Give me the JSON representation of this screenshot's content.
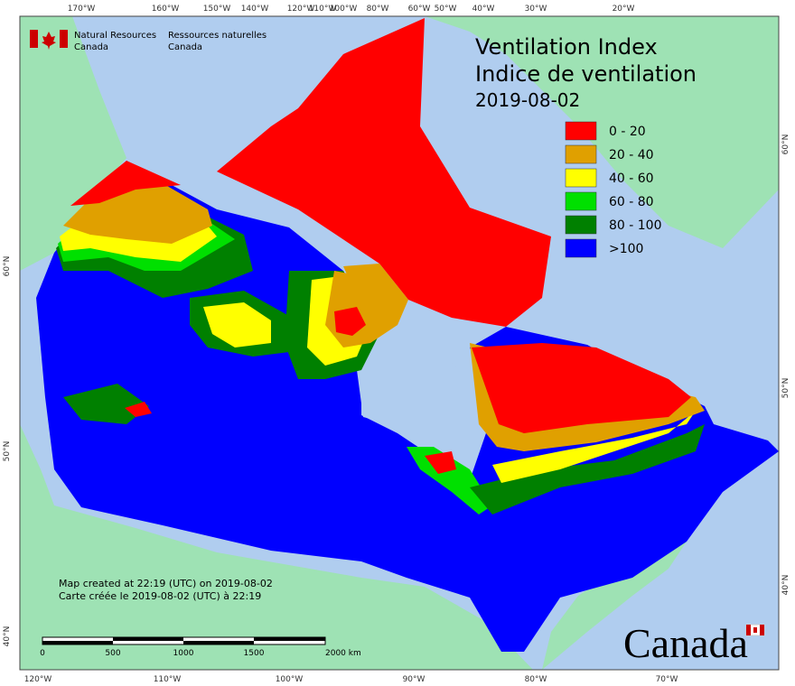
{
  "header": {
    "org_en": [
      "Natural Resources",
      "Canada"
    ],
    "org_fr": [
      "Ressources naturelles",
      "Canada"
    ]
  },
  "title": [
    "Ventilation Index",
    "Indice de ventilation",
    "2019-08-02"
  ],
  "legend": [
    {
      "label": "0 - 20",
      "color": "#ff0000"
    },
    {
      "label": "20 - 40",
      "color": "#e0a000"
    },
    {
      "label": "40 - 60",
      "color": "#ffff00"
    },
    {
      "label": "60 - 80",
      "color": "#00e000"
    },
    {
      "label": "80 - 100",
      "color": "#008000"
    },
    {
      "label": ">100",
      "color": "#0000ff"
    }
  ],
  "top_longitudes": [
    "170°W",
    "160°W",
    "150°W",
    "140°W",
    "120°W",
    "110°W",
    "100°W",
    "80°W",
    "60°W",
    "50°W",
    "40°W",
    "30°W",
    "20°W"
  ],
  "bottom_longitudes": [
    "120°W",
    "110°W",
    "100°W",
    "90°W",
    "80°W",
    "70°W"
  ],
  "left_latitudes": [
    "60°N",
    "50°N",
    "40°N"
  ],
  "right_latitudes": [
    "60°N",
    "50°N",
    "40°N"
  ],
  "notes": [
    "Map created at 22:19 (UTC) on 2019-08-02",
    "Carte créée le 2019-08-02 (UTC) à 22:19"
  ],
  "scale_labels": [
    "0",
    "500",
    "1000",
    "1500",
    "2000 km"
  ],
  "wordmark": "Canada"
}
